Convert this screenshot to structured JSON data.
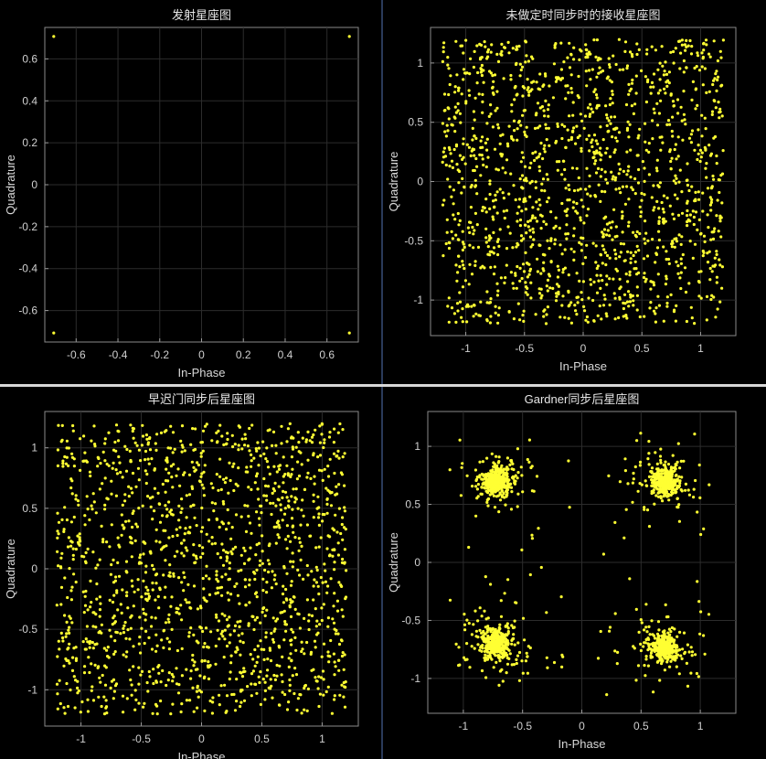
{
  "chart_data": [
    {
      "id": "tx",
      "type": "scatter",
      "title": "发射星座图",
      "xlabel": "In-Phase",
      "ylabel": "Quadrature",
      "xlim": [
        -0.75,
        0.75
      ],
      "ylim": [
        -0.75,
        0.75
      ],
      "xticks": [
        -0.6,
        -0.4,
        -0.2,
        0,
        0.2,
        0.4,
        0.6
      ],
      "yticks": [
        -0.6,
        -0.4,
        -0.2,
        0,
        0.2,
        0.4,
        0.6
      ],
      "grid": true,
      "point_color": "#ffff33",
      "points": [
        [
          -0.707,
          0.707
        ],
        [
          0.707,
          0.707
        ],
        [
          -0.707,
          -0.707
        ],
        [
          0.707,
          -0.707
        ]
      ]
    },
    {
      "id": "no-sync",
      "type": "scatter",
      "title": "未做定时同步时的接收星座图",
      "xlabel": "In-Phase",
      "ylabel": "Quadrature",
      "xlim": [
        -1.3,
        1.3
      ],
      "ylim": [
        -1.3,
        1.3
      ],
      "xticks": [
        -1,
        -0.5,
        0,
        0.5,
        1
      ],
      "yticks": [
        -1,
        -0.5,
        0,
        0.5,
        1
      ],
      "grid": true,
      "point_color": "#ffff33",
      "distribution": "uniform-square",
      "point_count": 1500,
      "extent": 1.2
    },
    {
      "id": "early-late",
      "type": "scatter",
      "title": "早迟门同步后星座图",
      "xlabel": "In-Phase",
      "ylabel": "Quadrature",
      "xlim": [
        -1.3,
        1.3
      ],
      "ylim": [
        -1.3,
        1.3
      ],
      "xticks": [
        -1,
        -0.5,
        0,
        0.5,
        1
      ],
      "yticks": [
        -1,
        -0.5,
        0,
        0.5,
        1
      ],
      "grid": true,
      "point_color": "#ffff33",
      "distribution": "uniform-square",
      "point_count": 1500,
      "extent": 1.2
    },
    {
      "id": "gardner",
      "type": "scatter",
      "title": "Gardner同步后星座图",
      "xlabel": "In-Phase",
      "ylabel": "Quadrature",
      "xlim": [
        -1.3,
        1.3
      ],
      "ylim": [
        -1.3,
        1.3
      ],
      "xticks": [
        -1,
        -0.5,
        0,
        0.5,
        1
      ],
      "yticks": [
        -1,
        -0.5,
        0,
        0.5,
        1
      ],
      "grid": true,
      "point_color": "#ffff33",
      "distribution": "qpsk-clusters",
      "cluster_centers": [
        [
          -0.72,
          0.7
        ],
        [
          0.7,
          0.7
        ],
        [
          -0.72,
          -0.7
        ],
        [
          0.7,
          -0.72
        ]
      ],
      "cluster_points": 380,
      "cluster_spread": 0.06,
      "outlier_count": 90
    }
  ]
}
